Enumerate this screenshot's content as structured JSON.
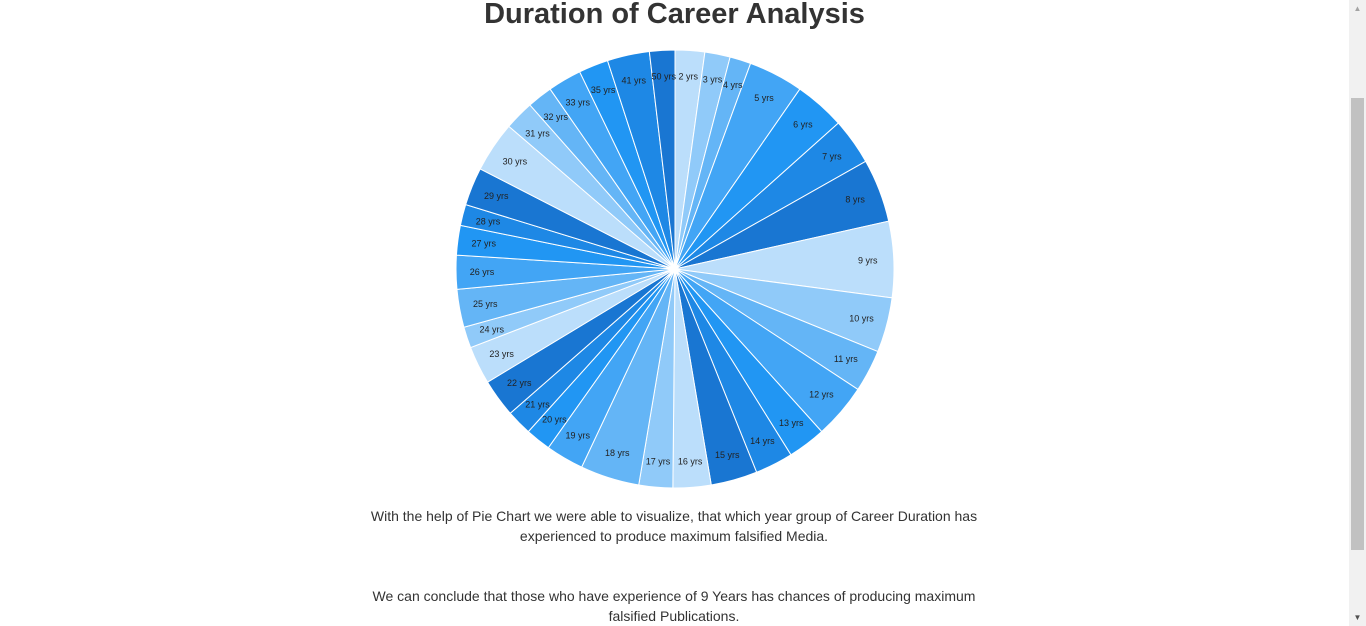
{
  "page": {
    "title": "Duration of Career Analysis",
    "paragraph_1": "With the help of Pie Chart we were able to visualize, that which year group of Career Duration has experienced to produce maximum falsified Media.",
    "paragraph_2": "We can conclude that those who have experience of 9 Years has chances of producing maximum falsified Publications."
  },
  "scrollbar": {
    "up_icon": "triangle-up-icon",
    "down_icon": "triangle-down-icon"
  },
  "chart_data": {
    "type": "pie",
    "title": "Duration of Career Analysis",
    "start_angle_deg": 0,
    "direction": "clockwise",
    "palette": [
      "#bbdefb",
      "#90caf9",
      "#64b5f6",
      "#42a5f5",
      "#2196f3",
      "#1e88e5",
      "#1976d2"
    ],
    "labels": [
      "2 yrs",
      "3 yrs",
      "4 yrs",
      "5 yrs",
      "6 yrs",
      "7 yrs",
      "8 yrs",
      "9 yrs",
      "10 yrs",
      "11 yrs",
      "12 yrs",
      "13 yrs",
      "14 yrs",
      "15 yrs",
      "16 yrs",
      "17 yrs",
      "18 yrs",
      "19 yrs",
      "20 yrs",
      "21 yrs",
      "22 yrs",
      "23 yrs",
      "24 yrs",
      "25 yrs",
      "26 yrs",
      "27 yrs",
      "28 yrs",
      "29 yrs",
      "30 yrs",
      "31 yrs",
      "32 yrs",
      "33 yrs",
      "35 yrs",
      "41 yrs",
      "50 yrs"
    ],
    "values": [
      7.0,
      6.0,
      5.0,
      13.0,
      12.0,
      11.0,
      15.0,
      18.0,
      13.0,
      10.0,
      13.0,
      9.0,
      9.0,
      11.0,
      9.0,
      8.0,
      14.0,
      9.0,
      6.0,
      6.0,
      9.0,
      9.0,
      5.0,
      9.0,
      8.0,
      7.0,
      5.0,
      9.0,
      12.0,
      7.0,
      6.0,
      8.0,
      7.0,
      10.0,
      6.0
    ]
  }
}
